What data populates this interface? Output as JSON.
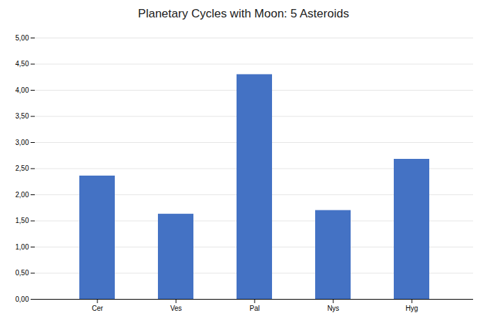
{
  "chart_data": {
    "type": "bar",
    "title": "Planetary Cycles with Moon: 5 Asteroids",
    "categories": [
      "Cer",
      "Ves",
      "Pal",
      "Nys",
      "Hyg"
    ],
    "values": [
      2.36,
      1.63,
      4.3,
      1.7,
      2.68
    ],
    "color": "#4472C4",
    "ylim": [
      0,
      5.0
    ],
    "yticks": [
      {
        "value": 0.0,
        "label": "0,00"
      },
      {
        "value": 0.5,
        "label": "0,50"
      },
      {
        "value": 1.0,
        "label": "1,00"
      },
      {
        "value": 1.5,
        "label": "1,50"
      },
      {
        "value": 2.0,
        "label": "2,00"
      },
      {
        "value": 2.5,
        "label": "2,50"
      },
      {
        "value": 3.0,
        "label": "3,00"
      },
      {
        "value": 3.5,
        "label": "3,50"
      },
      {
        "value": 4.0,
        "label": "4,00"
      },
      {
        "value": 4.5,
        "label": "4,50"
      },
      {
        "value": 5.0,
        "label": "5,00"
      }
    ],
    "grid": true
  }
}
